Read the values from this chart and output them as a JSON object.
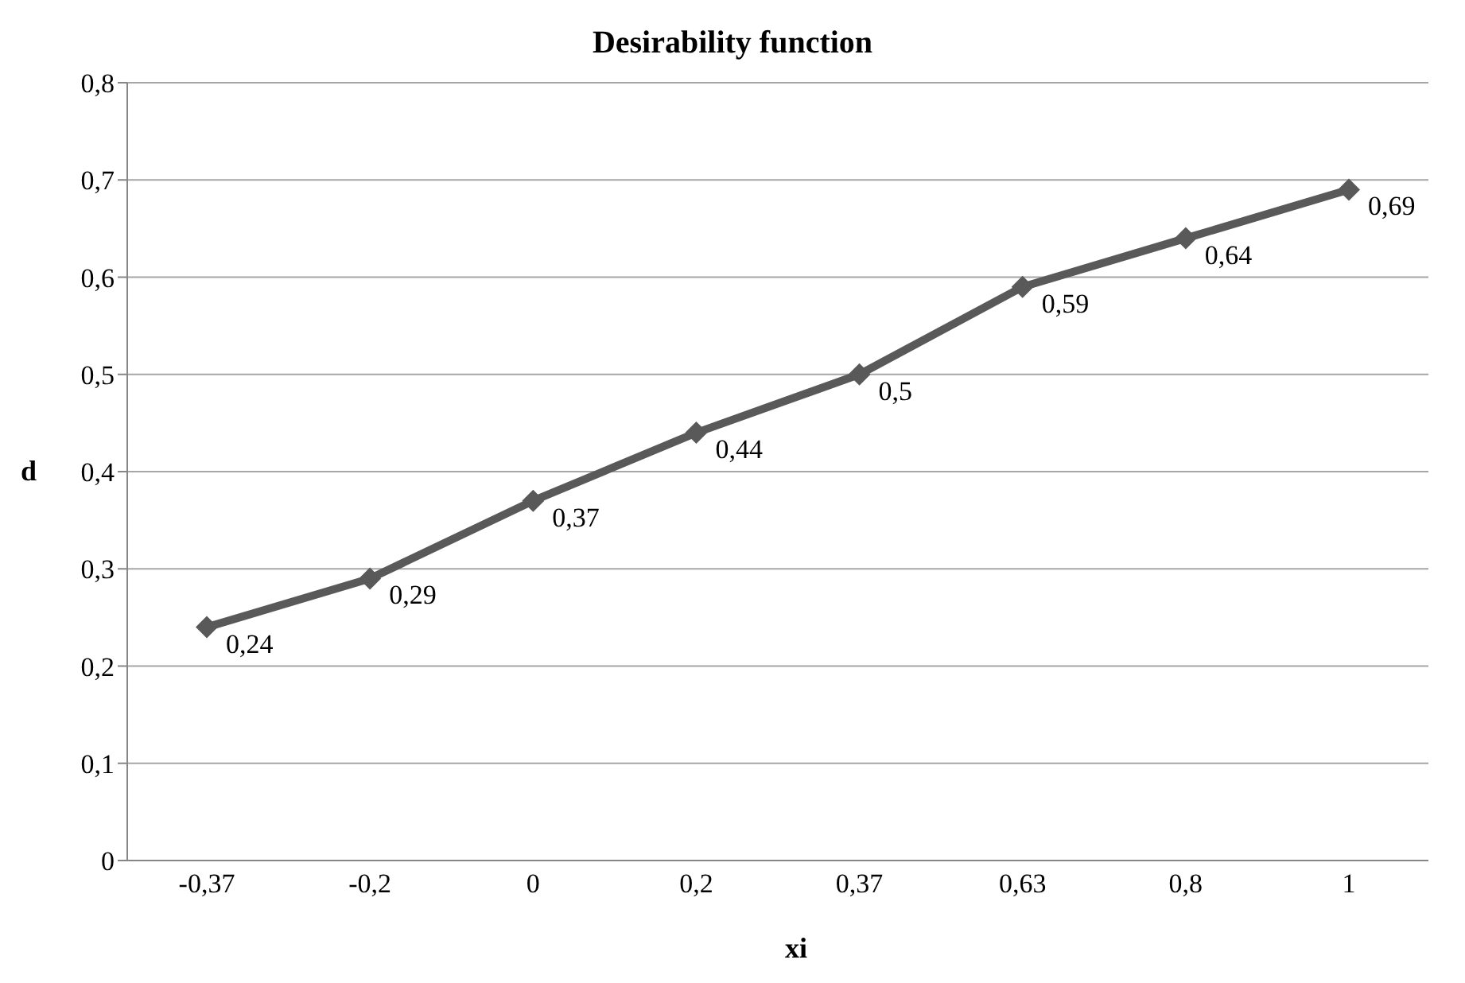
{
  "chart_data": {
    "type": "line",
    "title": "Desirability function",
    "xlabel": "xi",
    "ylabel": "d",
    "categories": [
      "-0,37",
      "-0,2",
      "0",
      "0,2",
      "0,37",
      "0,63",
      "0,8",
      "1"
    ],
    "series": [
      {
        "color": "#595959",
        "values": [
          0.24,
          0.29,
          0.37,
          0.44,
          0.5,
          0.59,
          0.64,
          0.69
        ],
        "value_labels": [
          "0,24",
          "0,29",
          "0,37",
          "0,44",
          "0,5",
          "0,59",
          "0,64",
          "0,69"
        ]
      }
    ],
    "ylim": [
      0,
      0.8
    ],
    "yticks": [
      0,
      {
        "value": 0.1,
        "label": "0,1"
      },
      {
        "value": 0.2,
        "label": "0,2"
      },
      {
        "value": 0.3,
        "label": "0,3"
      },
      {
        "value": 0.4,
        "label": "0,4"
      },
      {
        "value": 0.5,
        "label": "0,5"
      },
      {
        "value": 0.6,
        "label": "0,6"
      },
      {
        "value": 0.7,
        "label": "0,7"
      },
      {
        "value": 0.8,
        "label": "0,8"
      }
    ],
    "grid": "y",
    "legend": false,
    "marker": "diamond",
    "line_style": "solid"
  }
}
